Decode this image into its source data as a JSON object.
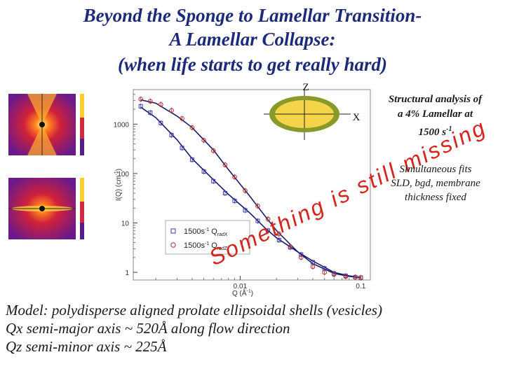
{
  "title_lines": [
    "Beyond the Sponge to Lamellar Transition-",
    "A Lamellar Collapse:",
    "(when life starts to get really hard)"
  ],
  "side_note": {
    "line1": "Structural analysis of",
    "line2": "a 4% Lamellar at",
    "line3": "1500 s",
    "line3_sup": "-1"
  },
  "side_note2": {
    "line1": "Simultaneous fits",
    "line2": "SLD, bgd, membrane",
    "line3": "thickness fixed"
  },
  "bottom_text": [
    "Model: polydisperse aligned prolate ellipsoidal shells (vesicles)",
    "Qx  semi-major axis ~ 520Å along flow direction",
    "Qz  semi-minor axis ~ 225Å"
  ],
  "overlay_text": "Something is still missing",
  "diagram": {
    "z_label": "Z",
    "x_label": "X",
    "ring_color": "#8a9a2a",
    "fill_color": "#f5d44a"
  },
  "colors": {
    "title": "#1c2a7a",
    "series1": "#3a3aa8",
    "series2": "#b03030",
    "fit": "#1a1a6a",
    "overlay": "#d4241c"
  },
  "chart_data": {
    "type": "scatter",
    "xscale": "log",
    "yscale": "log",
    "xlim": [
      0.0013,
      0.12
    ],
    "ylim": [
      0.7,
      5000
    ],
    "xlabel": "Q (Å",
    "xlabel_sup": "-1",
    "xlabel_end": ")",
    "ylabel": "I(Q) (cm",
    "ylabel_sup": "-1",
    "ylabel_end": ")",
    "x_ticks": [
      "0.01",
      "0.1"
    ],
    "y_ticks": [
      "1",
      "10",
      "100",
      "1000"
    ],
    "series": [
      {
        "name": "1500s",
        "label_sup": "-1",
        "label_sub": "Q",
        "label_sub2": "radX",
        "color": "#3a3aa8",
        "marker": "square",
        "x": [
          0.0015,
          0.0018,
          0.0022,
          0.0027,
          0.0033,
          0.004,
          0.005,
          0.006,
          0.0075,
          0.009,
          0.011,
          0.014,
          0.017,
          0.021,
          0.026,
          0.032,
          0.04,
          0.05,
          0.06,
          0.075,
          0.09,
          0.1
        ],
        "y": [
          2300,
          1700,
          1050,
          600,
          330,
          190,
          110,
          70,
          40,
          28,
          18,
          11,
          7,
          4.5,
          3.2,
          2.3,
          1.6,
          1.2,
          0.95,
          0.85,
          0.8,
          0.78
        ]
      },
      {
        "name": "1500s",
        "label_sup": "-1",
        "label_sub": "Q",
        "label_sub2": "radZ",
        "color": "#b03030",
        "marker": "circle",
        "x": [
          0.0015,
          0.0018,
          0.0022,
          0.0027,
          0.0033,
          0.004,
          0.005,
          0.006,
          0.0075,
          0.009,
          0.011,
          0.014,
          0.017,
          0.021,
          0.026,
          0.032,
          0.04,
          0.05,
          0.06,
          0.075,
          0.09,
          0.1
        ],
        "y": [
          3200,
          2900,
          2500,
          1900,
          1300,
          850,
          470,
          290,
          150,
          85,
          45,
          22,
          12,
          6,
          3.3,
          2,
          1.3,
          1,
          0.9,
          0.82,
          0.8,
          0.78
        ]
      }
    ],
    "fits": [
      {
        "x": [
          0.0015,
          0.002,
          0.003,
          0.004,
          0.006,
          0.008,
          0.012,
          0.016,
          0.02,
          0.03,
          0.04,
          0.06,
          0.08,
          0.1
        ],
        "y": [
          2200,
          1350,
          480,
          200,
          75,
          38,
          16,
          8,
          5,
          2.6,
          1.7,
          1,
          0.85,
          0.78
        ]
      },
      {
        "x": [
          0.0015,
          0.002,
          0.003,
          0.004,
          0.006,
          0.008,
          0.012,
          0.016,
          0.02,
          0.03,
          0.04,
          0.06,
          0.08,
          0.1
        ],
        "y": [
          3100,
          2650,
          1450,
          850,
          300,
          120,
          35,
          14,
          7,
          2.6,
          1.5,
          0.95,
          0.83,
          0.78
        ]
      }
    ],
    "legend_position": "bottom-left"
  }
}
